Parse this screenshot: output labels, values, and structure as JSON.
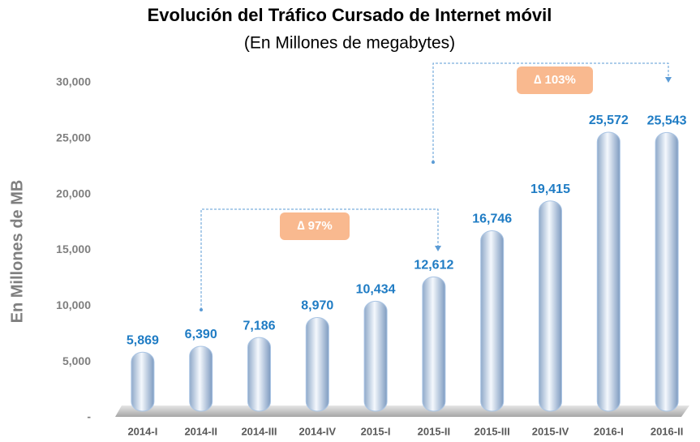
{
  "chart_data": {
    "type": "bar",
    "title": "Evolución del Tráfico Cursado de Internet móvil",
    "subtitle": "(En Millones de megabytes)",
    "y_label": "En Millones de MB",
    "categories": [
      "2014-I",
      "2014-II",
      "2014-III",
      "2014-IV",
      "2015-I",
      "2015-II",
      "2015-III",
      "2015-IV",
      "2016-I",
      "2016-II"
    ],
    "values": [
      5869,
      6390,
      7186,
      8970,
      10434,
      12612,
      16746,
      19415,
      25572,
      25543
    ],
    "value_labels": [
      "5,869",
      "6,390",
      "7,186",
      "8,970",
      "10,434",
      "12,612",
      "16,746",
      "19,415",
      "25,572",
      "25,543"
    ],
    "color": "#a9c4e4",
    "label_color": "#1f7cc4",
    "ylim": [
      0,
      30000
    ],
    "yticks": [
      {
        "value": 0,
        "label": "-"
      },
      {
        "value": 5000,
        "label": "5,000"
      },
      {
        "value": 10000,
        "label": "10,000"
      },
      {
        "value": 15000,
        "label": "15,000"
      },
      {
        "value": 20000,
        "label": "20,000"
      },
      {
        "value": 25000,
        "label": "25,000"
      },
      {
        "value": 30000,
        "label": "30,000"
      }
    ],
    "grid": false,
    "annotations": [
      {
        "text": "∆ 97%"
      },
      {
        "text": "∆ 103%"
      }
    ]
  }
}
